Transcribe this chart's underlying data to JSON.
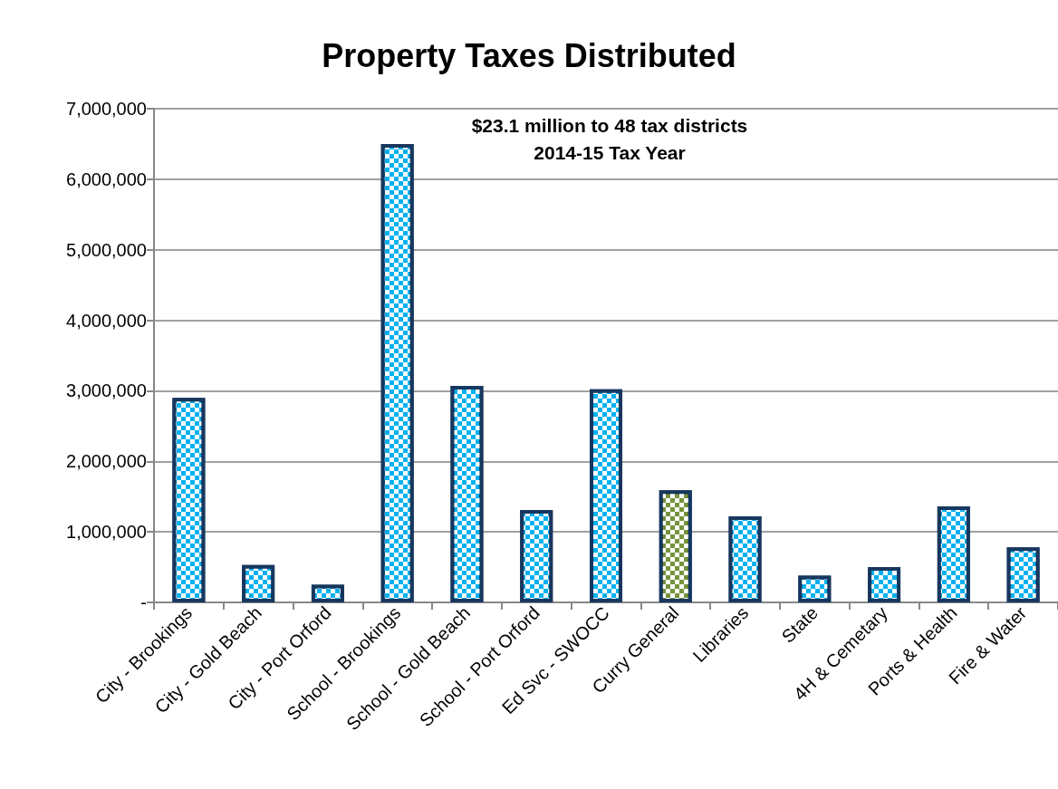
{
  "chart_data": {
    "type": "bar",
    "title": "Property Taxes Distributed",
    "annotations": [
      "$23.1 million to 48 tax districts",
      "2014-15 Tax Year"
    ],
    "categories": [
      "City - Brookings",
      "City - Gold Beach",
      "City - Port Orford",
      "School - Brookings",
      "School - Gold Beach",
      "School - Port Orford",
      "Ed Svc - SWOCC",
      "Curry General",
      "Libraries",
      "State",
      "4H & Cemetary",
      "Ports & Health",
      "Fire & Water"
    ],
    "values": [
      2900000,
      530000,
      250000,
      6500000,
      3070000,
      1310000,
      3020000,
      1590000,
      1220000,
      380000,
      500000,
      1360000,
      780000
    ],
    "colors": [
      "#00b0f0",
      "#00b0f0",
      "#00b0f0",
      "#00b0f0",
      "#00b0f0",
      "#00b0f0",
      "#00b0f0",
      "#77933c",
      "#00b0f0",
      "#00b0f0",
      "#00b0f0",
      "#00b0f0",
      "#00b0f0"
    ],
    "ylim": [
      0,
      7000000
    ],
    "yticks": [
      {
        "value": 0,
        "label": "-"
      },
      {
        "value": 1000000,
        "label": "1,000,000"
      },
      {
        "value": 2000000,
        "label": "2,000,000"
      },
      {
        "value": 3000000,
        "label": "3,000,000"
      },
      {
        "value": 4000000,
        "label": "4,000,000"
      },
      {
        "value": 5000000,
        "label": "5,000,000"
      },
      {
        "value": 6000000,
        "label": "6,000,000"
      },
      {
        "value": 7000000,
        "label": "7,000,000"
      }
    ],
    "grid": "y"
  }
}
